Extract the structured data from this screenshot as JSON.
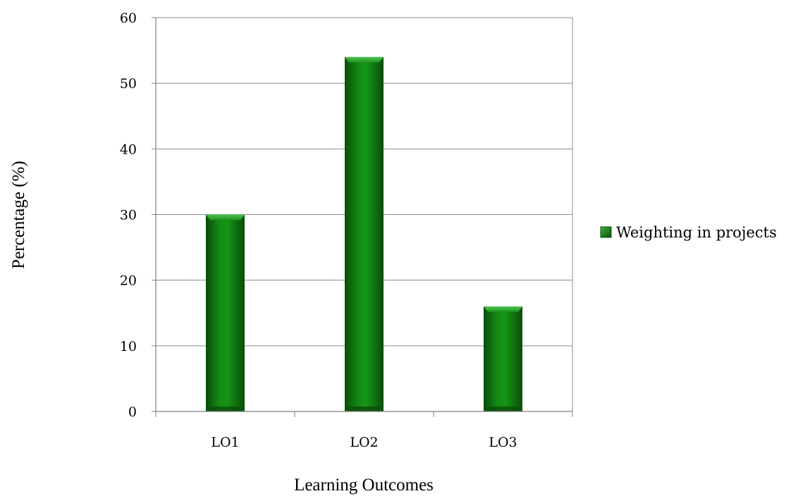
{
  "chart_data": {
    "type": "bar",
    "title": "",
    "categories": [
      "LO1",
      "LO2",
      "LO3"
    ],
    "series": [
      {
        "name": "Weighting in projects",
        "values": [
          30,
          54,
          16
        ]
      }
    ],
    "xlabel": "Learning Outcomes",
    "ylabel": "Percentage (%)",
    "ylim": [
      0,
      60
    ],
    "yticks": [
      0,
      10,
      20,
      30,
      40,
      50,
      60
    ],
    "grid": true,
    "legend_position": "right",
    "colors": {
      "bar": "#117a11",
      "bar_dark": "#0a4d0a",
      "bar_light": "#3fb43f",
      "grid": "#8c8c8c",
      "axis": "#7f7f7f"
    }
  }
}
